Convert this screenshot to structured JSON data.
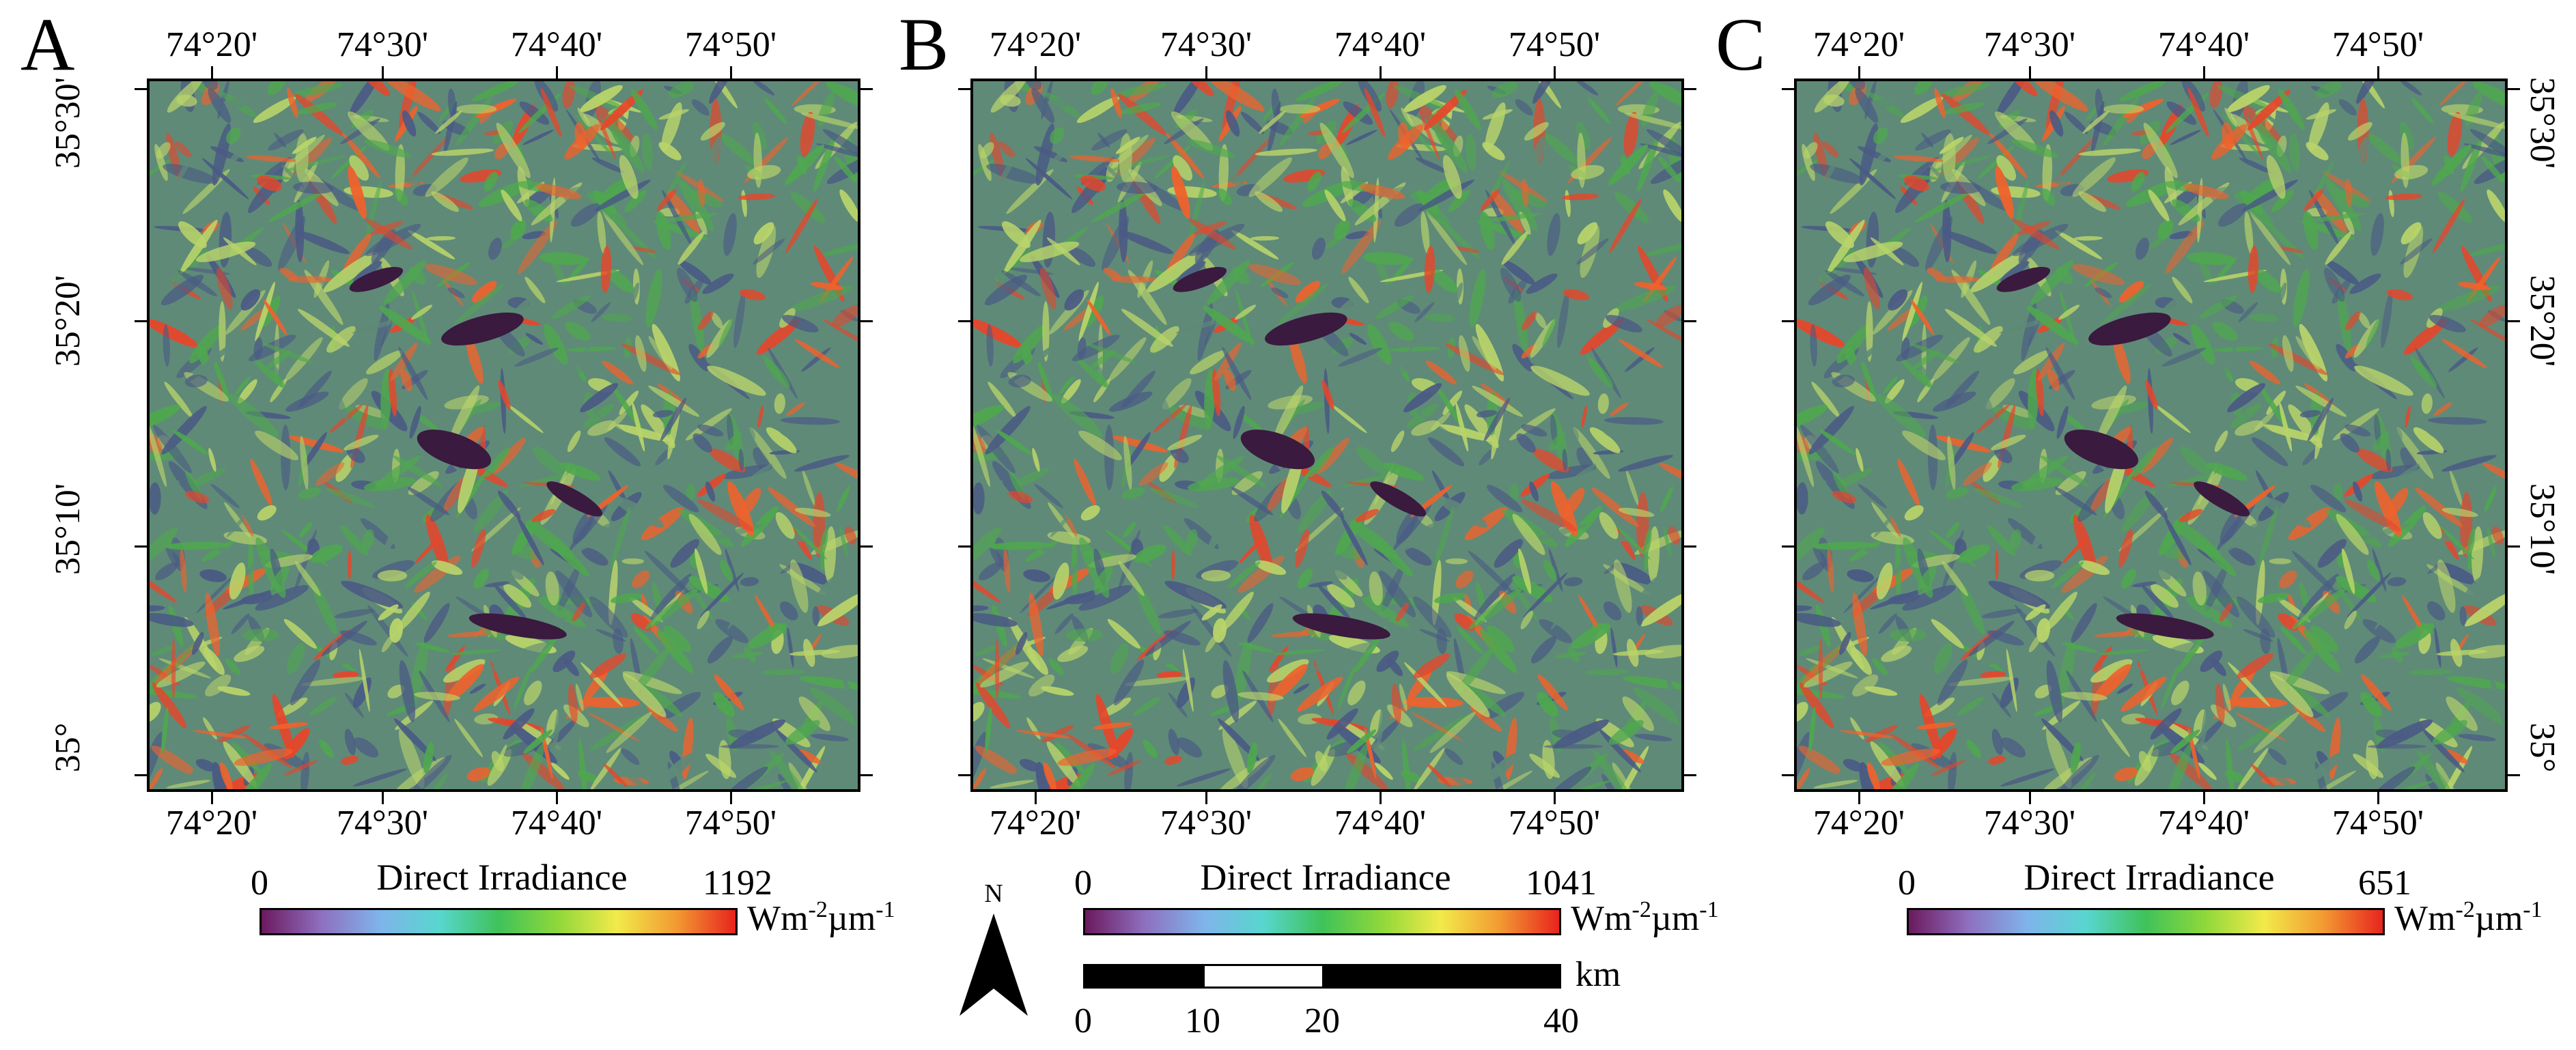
{
  "map_panels": [
    {
      "letter": "A",
      "lon_labels_top": [
        "74°20'",
        "74°30'",
        "74°40'",
        "74°50'"
      ],
      "lon_labels_bottom": [
        "74°20'",
        "74°30'",
        "74°40'",
        "74°50'"
      ],
      "lat_labels": [
        "35°30'",
        "35°20'",
        "35°10'",
        "35°"
      ],
      "colorbar": {
        "title": "Direct Irradiance",
        "min": "0",
        "max": "1192",
        "unit_base": "Wm",
        "unit_exp1": "-2",
        "unit_mid": "µm",
        "unit_exp2": "-1"
      }
    },
    {
      "letter": "B",
      "lon_labels_top": [
        "74°20'",
        "74°30'",
        "74°40'",
        "74°50'"
      ],
      "lon_labels_bottom": [
        "74°20'",
        "74°30'",
        "74°40'",
        "74°50'"
      ],
      "lat_labels": [],
      "colorbar": {
        "title": "Direct Irradiance",
        "min": "0",
        "max": "1041",
        "unit_base": "Wm",
        "unit_exp1": "-2",
        "unit_mid": "µm",
        "unit_exp2": "-1"
      }
    },
    {
      "letter": "C",
      "lon_labels_top": [
        "74°20'",
        "74°30'",
        "74°40'",
        "74°50'"
      ],
      "lon_labels_bottom": [
        "74°20'",
        "74°30'",
        "74°40'",
        "74°50'"
      ],
      "lat_labels": [
        "35°30'",
        "35°20'",
        "35°10'",
        "35°"
      ],
      "colorbar": {
        "title": "Direct Irradiance",
        "min": "0",
        "max": "651",
        "unit_base": "Wm",
        "unit_exp1": "-2",
        "unit_mid": "µm",
        "unit_exp2": "-1"
      }
    }
  ],
  "colormap": [
    "#6b1a5e",
    "#8e6fbf",
    "#7fb4ea",
    "#58d6cf",
    "#3fc25a",
    "#8fd83a",
    "#f2ea4a",
    "#f29a32",
    "#e8241e"
  ],
  "terrain_palette": {
    "shadow": "#3a1a3e",
    "low": "#4a5a84",
    "mid_low": "#5f8a78",
    "mid": "#4fa74f",
    "mid_high": "#b9d46a",
    "high": "#e8452a",
    "peak": "#f0622c"
  },
  "north_arrow": {
    "label": "N",
    "icon": "north-arrow-icon"
  },
  "scale_bar": {
    "unit": "km",
    "labels": [
      "0",
      "10",
      "20",
      "40"
    ]
  }
}
